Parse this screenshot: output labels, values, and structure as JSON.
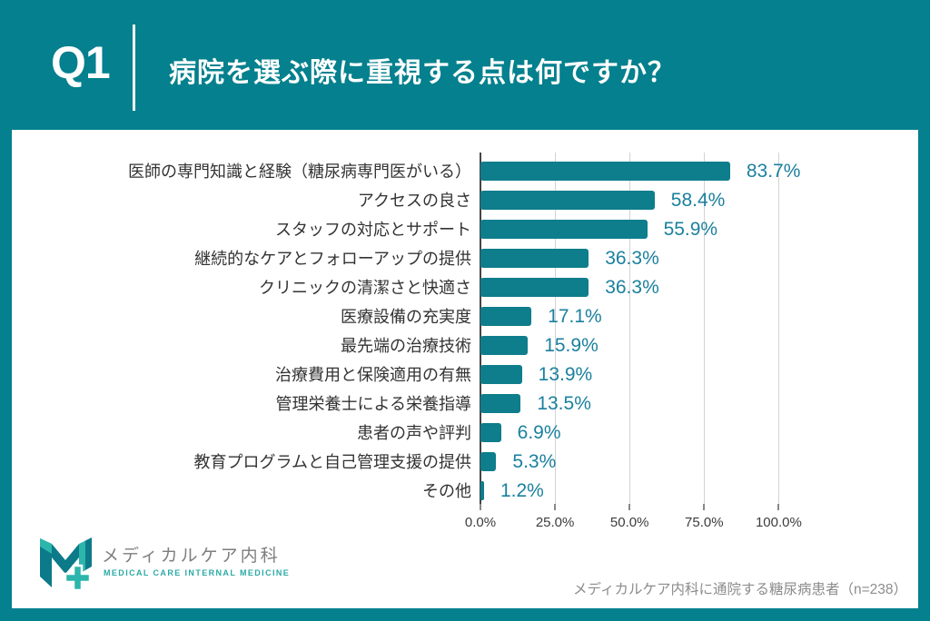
{
  "header": {
    "question_number": "Q1",
    "title": "病院を選ぶ際に重視する点は何ですか？"
  },
  "chart_data": {
    "type": "bar",
    "orientation": "horizontal",
    "categories": [
      "医師の専門知識と経験（糖尿病専門医がいる）",
      "アクセスの良さ",
      "スタッフの対応とサポート",
      "継続的なケアとフォローアップの提供",
      "クリニックの清潔さと快適さ",
      "医療設備の充実度",
      "最先端の治療技術",
      "治療費用と保険適用の有無",
      "管理栄養士による栄養指導",
      "患者の声や評判",
      "教育プログラムと自己管理支援の提供",
      "その他"
    ],
    "values": [
      83.7,
      58.4,
      55.9,
      36.3,
      36.3,
      17.1,
      15.9,
      13.9,
      13.5,
      6.9,
      5.3,
      1.2
    ],
    "value_labels": [
      "83.7%",
      "58.4%",
      "55.9%",
      "36.3%",
      "36.3%",
      "17.1%",
      "15.9%",
      "13.9%",
      "13.5%",
      "6.9%",
      "5.3%",
      "1.2%"
    ],
    "x_ticks": [
      "0.0%",
      "25.0%",
      "50.0%",
      "75.0%",
      "100.0%"
    ],
    "x_tick_values": [
      0,
      25,
      50,
      75,
      100
    ],
    "xlim": [
      0,
      100
    ],
    "grid": true,
    "bar_color": "#0E7D8C",
    "value_label_color": "#1B809E"
  },
  "footer": {
    "source_note": "メディカルケア内科に通院する糖尿病患者（n=238）",
    "logo": {
      "name_jp": "メディカルケア内科",
      "name_en": "MEDICAL CARE INTERNAL MEDICINE"
    }
  },
  "colors": {
    "background": "#04808E",
    "card": "#FFFFFF",
    "bar": "#0E7D8C",
    "value_text": "#1B809E",
    "logo_dark_teal": "#0C7A89",
    "logo_light_teal": "#2BB5AB"
  }
}
